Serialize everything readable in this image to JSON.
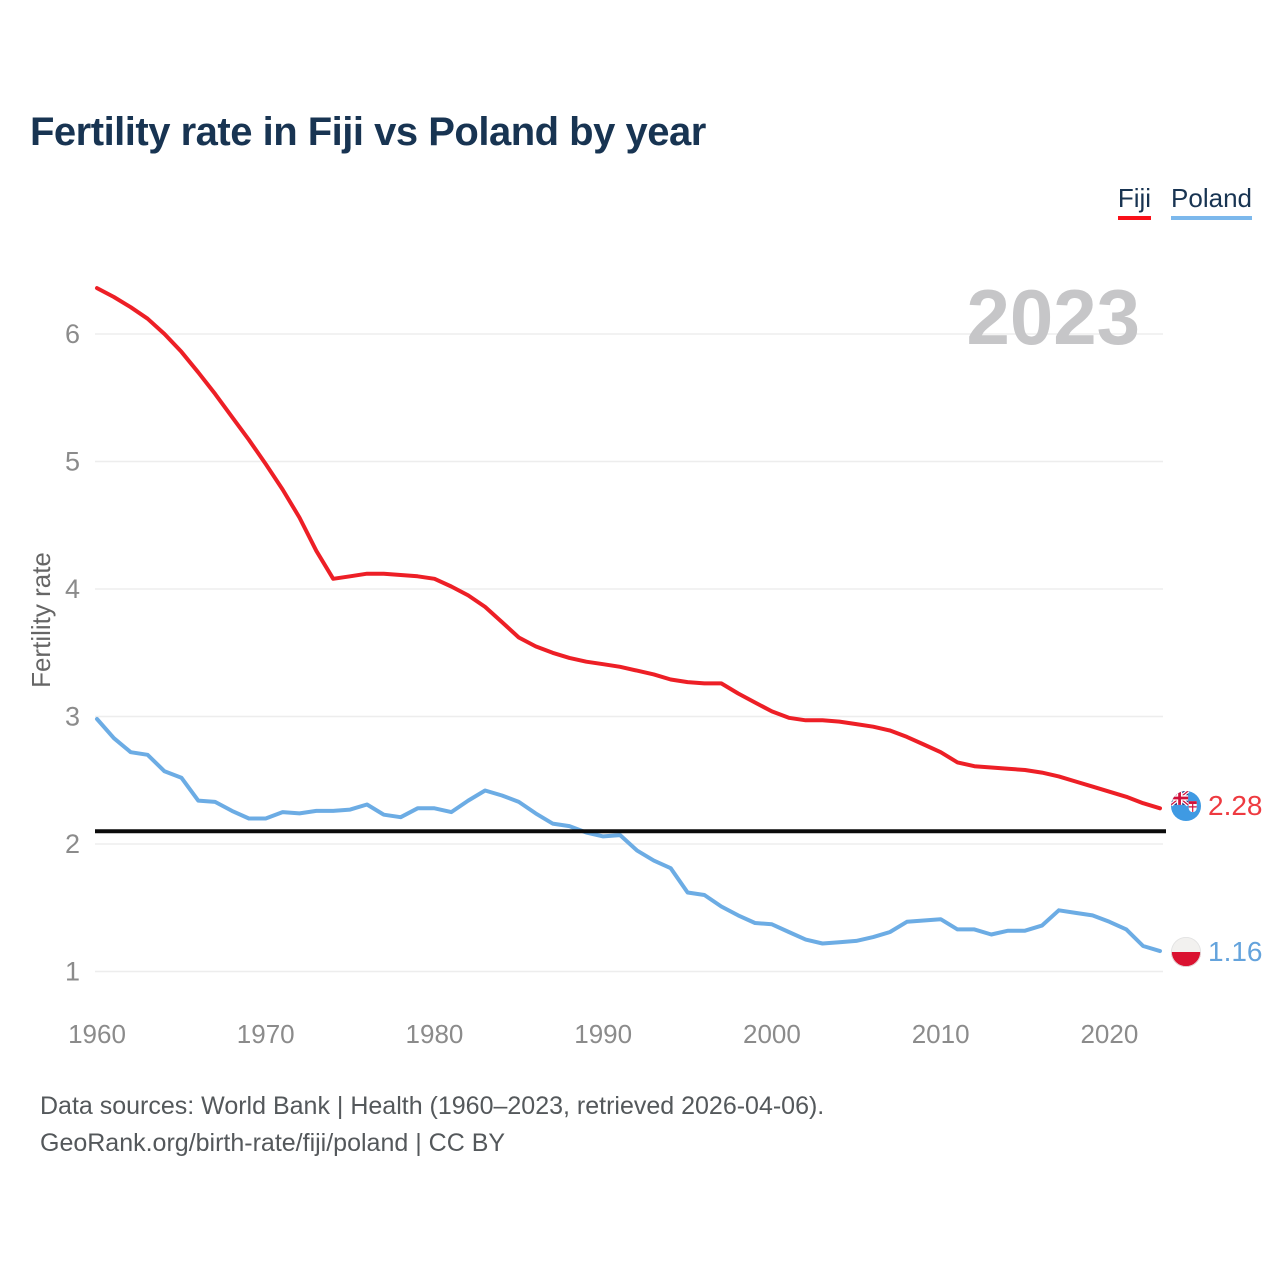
{
  "title": "Fertility rate in Fiji vs Poland by year",
  "legend": [
    {
      "label": "Fiji",
      "color": "#f91019"
    },
    {
      "label": "Poland",
      "color": "#7cb8ec"
    }
  ],
  "watermark": {
    "text": "2023",
    "color": "#c6c6c8"
  },
  "end_labels": [
    {
      "series": "Fiji",
      "value": "2.28",
      "color": "#ee3a40",
      "flag": "fiji-flag"
    },
    {
      "series": "Poland",
      "value": "1.16",
      "color": "#64a3dc",
      "flag": "poland-flag"
    }
  ],
  "footer": {
    "line1": "Data sources: World Bank | Health (1960–2023, retrieved 2026-04-06).",
    "line2": "GeoRank.org/birth-rate/fiji/poland | CC BY"
  },
  "chart_data": {
    "type": "line",
    "title": "Fertility rate in Fiji vs Poland by year",
    "xlabel": "",
    "ylabel": "Fertility rate",
    "x_start": 1960,
    "x_end": 2023,
    "xlim": [
      1960,
      2023
    ],
    "ylim": [
      0.95,
      6.5
    ],
    "xticks": [
      1960,
      1970,
      1980,
      1990,
      2000,
      2010,
      2020
    ],
    "yticks": [
      1,
      2,
      3,
      4,
      5,
      6
    ],
    "grid": true,
    "legend_position": "top-right",
    "reference_line": {
      "value": 2.1,
      "color": "#0b0b0b"
    },
    "axis_text_color": "#8b8b8b",
    "grid_color": "#ededed",
    "series": [
      {
        "name": "Fiji",
        "color": "#ed1f26",
        "end_value": 2.28,
        "values": [
          6.36,
          6.29,
          6.21,
          6.12,
          6.0,
          5.86,
          5.7,
          5.53,
          5.35,
          5.17,
          4.98,
          4.78,
          4.56,
          4.3,
          4.08,
          4.1,
          4.12,
          4.12,
          4.11,
          4.1,
          4.08,
          4.02,
          3.95,
          3.86,
          3.74,
          3.62,
          3.55,
          3.5,
          3.46,
          3.43,
          3.41,
          3.39,
          3.36,
          3.33,
          3.29,
          3.27,
          3.26,
          3.26,
          3.18,
          3.11,
          3.04,
          2.99,
          2.97,
          2.97,
          2.96,
          2.94,
          2.92,
          2.89,
          2.84,
          2.78,
          2.72,
          2.64,
          2.61,
          2.6,
          2.59,
          2.58,
          2.56,
          2.53,
          2.49,
          2.45,
          2.41,
          2.37,
          2.32,
          2.28
        ]
      },
      {
        "name": "Poland",
        "color": "#6cace4",
        "end_value": 1.16,
        "values": [
          2.98,
          2.83,
          2.72,
          2.7,
          2.57,
          2.52,
          2.34,
          2.33,
          2.26,
          2.2,
          2.2,
          2.25,
          2.24,
          2.26,
          2.26,
          2.27,
          2.31,
          2.23,
          2.21,
          2.28,
          2.28,
          2.25,
          2.34,
          2.42,
          2.38,
          2.33,
          2.24,
          2.16,
          2.14,
          2.09,
          2.06,
          2.07,
          1.95,
          1.87,
          1.81,
          1.62,
          1.6,
          1.51,
          1.44,
          1.38,
          1.37,
          1.31,
          1.25,
          1.22,
          1.23,
          1.24,
          1.27,
          1.31,
          1.39,
          1.4,
          1.41,
          1.33,
          1.33,
          1.29,
          1.32,
          1.32,
          1.36,
          1.48,
          1.46,
          1.44,
          1.39,
          1.33,
          1.2,
          1.16
        ]
      }
    ]
  }
}
